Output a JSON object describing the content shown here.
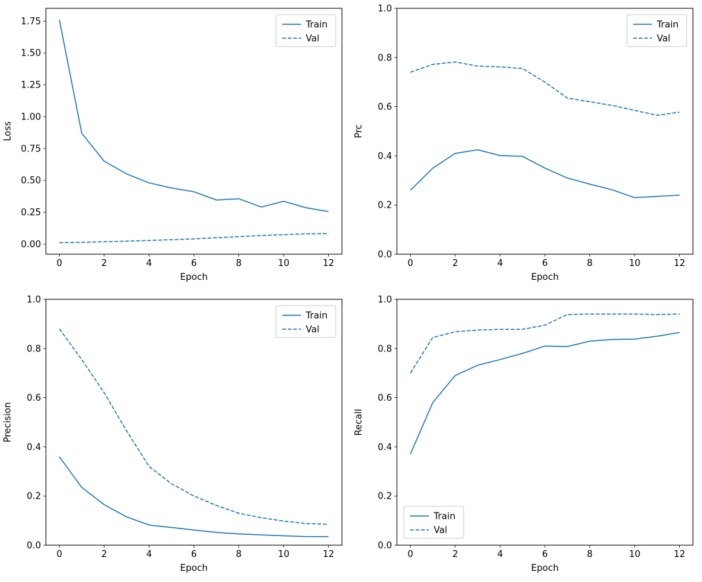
{
  "figure": {
    "background": "#ffffff",
    "line_color": "#1f77b4",
    "axis_color": "#000000",
    "legend_edge_color": "#cccccc"
  },
  "chart_data": [
    {
      "type": "line",
      "name": "loss",
      "title": "",
      "xlabel": "Epoch",
      "ylabel": "Loss",
      "x": [
        0,
        1,
        2,
        3,
        4,
        5,
        6,
        7,
        8,
        9,
        10,
        11,
        12
      ],
      "xlim": [
        -0.6,
        12.6
      ],
      "ylim": [
        -0.08,
        1.85
      ],
      "xticks": [
        0,
        2,
        4,
        6,
        8,
        10,
        12
      ],
      "yticks": [
        0.0,
        0.25,
        0.5,
        0.75,
        1.0,
        1.25,
        1.5,
        1.75
      ],
      "ytick_decimals": 2,
      "grid": false,
      "legend_position": "upper-right",
      "series": [
        {
          "name": "Train",
          "line_style": "solid",
          "values": [
            1.76,
            0.87,
            0.65,
            0.55,
            0.48,
            0.44,
            0.41,
            0.345,
            0.355,
            0.29,
            0.335,
            0.285,
            0.255
          ]
        },
        {
          "name": "Val",
          "line_style": "dashed",
          "values": [
            0.01,
            0.013,
            0.018,
            0.022,
            0.028,
            0.034,
            0.04,
            0.05,
            0.058,
            0.066,
            0.074,
            0.08,
            0.082
          ]
        }
      ]
    },
    {
      "type": "line",
      "name": "prc",
      "title": "",
      "xlabel": "Epoch",
      "ylabel": "Prc",
      "x": [
        0,
        1,
        2,
        3,
        4,
        5,
        6,
        7,
        8,
        9,
        10,
        11,
        12
      ],
      "xlim": [
        -0.6,
        12.6
      ],
      "ylim": [
        0.0,
        1.0
      ],
      "xticks": [
        0,
        2,
        4,
        6,
        8,
        10,
        12
      ],
      "yticks": [
        0.0,
        0.2,
        0.4,
        0.6,
        0.8,
        1.0
      ],
      "ytick_decimals": 1,
      "grid": false,
      "legend_position": "upper-right",
      "series": [
        {
          "name": "Train",
          "line_style": "solid",
          "values": [
            0.26,
            0.35,
            0.41,
            0.425,
            0.401,
            0.398,
            0.35,
            0.31,
            0.285,
            0.262,
            0.23,
            0.235,
            0.24
          ]
        },
        {
          "name": "Val",
          "line_style": "dashed",
          "values": [
            0.74,
            0.772,
            0.782,
            0.765,
            0.762,
            0.755,
            0.7,
            0.635,
            0.62,
            0.605,
            0.585,
            0.565,
            0.578
          ]
        }
      ]
    },
    {
      "type": "line",
      "name": "precision",
      "title": "",
      "xlabel": "Epoch",
      "ylabel": "Precision",
      "x": [
        0,
        1,
        2,
        3,
        4,
        5,
        6,
        7,
        8,
        9,
        10,
        11,
        12
      ],
      "xlim": [
        -0.6,
        12.6
      ],
      "ylim": [
        0.0,
        1.0
      ],
      "xticks": [
        0,
        2,
        4,
        6,
        8,
        10,
        12
      ],
      "yticks": [
        0.0,
        0.2,
        0.4,
        0.6,
        0.8,
        1.0
      ],
      "ytick_decimals": 1,
      "grid": false,
      "legend_position": "upper-right",
      "series": [
        {
          "name": "Train",
          "line_style": "solid",
          "values": [
            0.36,
            0.235,
            0.165,
            0.115,
            0.082,
            0.072,
            0.062,
            0.052,
            0.046,
            0.042,
            0.038,
            0.035,
            0.035
          ]
        },
        {
          "name": "Val",
          "line_style": "dashed",
          "values": [
            0.88,
            0.755,
            0.62,
            0.465,
            0.32,
            0.25,
            0.2,
            0.162,
            0.13,
            0.112,
            0.098,
            0.088,
            0.085
          ]
        }
      ]
    },
    {
      "type": "line",
      "name": "recall",
      "title": "",
      "xlabel": "Epoch",
      "ylabel": "Recall",
      "x": [
        0,
        1,
        2,
        3,
        4,
        5,
        6,
        7,
        8,
        9,
        10,
        11,
        12
      ],
      "xlim": [
        -0.6,
        12.6
      ],
      "ylim": [
        0.0,
        1.0
      ],
      "xticks": [
        0,
        2,
        4,
        6,
        8,
        10,
        12
      ],
      "yticks": [
        0.0,
        0.2,
        0.4,
        0.6,
        0.8,
        1.0
      ],
      "ytick_decimals": 1,
      "grid": false,
      "legend_position": "lower-left",
      "series": [
        {
          "name": "Train",
          "line_style": "solid",
          "values": [
            0.37,
            0.58,
            0.69,
            0.732,
            0.755,
            0.78,
            0.81,
            0.808,
            0.83,
            0.837,
            0.838,
            0.85,
            0.865
          ]
        },
        {
          "name": "Val",
          "line_style": "dashed",
          "values": [
            0.7,
            0.845,
            0.868,
            0.875,
            0.878,
            0.878,
            0.895,
            0.938,
            0.94,
            0.94,
            0.94,
            0.938,
            0.94
          ]
        }
      ]
    }
  ]
}
